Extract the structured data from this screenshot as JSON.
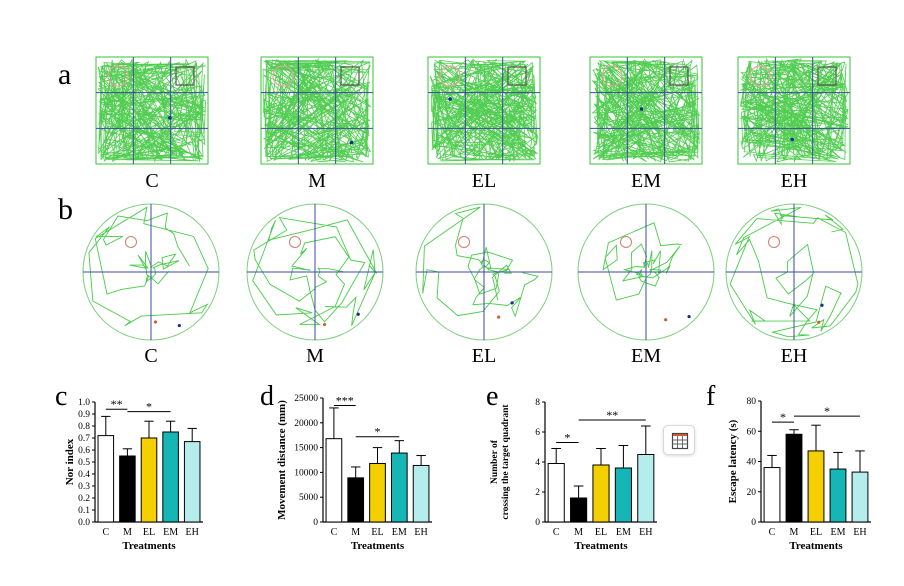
{
  "rows": {
    "a": {
      "label": "a",
      "groups": [
        "C",
        "M",
        "EL",
        "EM",
        "EH"
      ]
    },
    "b": {
      "label": "b",
      "groups": [
        "C",
        "M",
        "EL",
        "EM",
        "EH"
      ]
    }
  },
  "colors": {
    "C": "#ffffff",
    "M": "#000000",
    "EL": "#f5d000",
    "EM": "#17b6b6",
    "EH": "#b5ecec",
    "track": "#33c633",
    "grid": "#3b4aa0",
    "ring": "#e0a59a"
  },
  "floating_button": {
    "icon": "calendar-grid-icon"
  },
  "chart_data": [
    {
      "panel": "c",
      "type": "bar",
      "categories": [
        "C",
        "M",
        "EL",
        "EM",
        "EH"
      ],
      "values": [
        0.72,
        0.55,
        0.7,
        0.75,
        0.67
      ],
      "errors": [
        0.16,
        0.06,
        0.14,
        0.09,
        0.11
      ],
      "xlabel": "Treatments",
      "ylabel": "Nor index",
      "ylim": [
        0,
        1.0
      ],
      "yticks": [
        "0.0",
        "0.1",
        "0.2",
        "0.3",
        "0.4",
        "0.5",
        "0.6",
        "0.7",
        "0.8",
        "0.9",
        "1.0"
      ],
      "significance": [
        {
          "from": 0,
          "to": 1,
          "y": 0.94,
          "label": "**"
        },
        {
          "from": 1,
          "to": 3,
          "y": 0.92,
          "label": "*"
        }
      ]
    },
    {
      "panel": "d",
      "type": "bar",
      "categories": [
        "C",
        "M",
        "EL",
        "EM",
        "EH"
      ],
      "values": [
        16800,
        8900,
        11800,
        13900,
        11400
      ],
      "errors": [
        6200,
        2200,
        3200,
        2500,
        2000
      ],
      "xlabel": "Treatments",
      "ylabel": "Movement distance (mm)",
      "ylim": [
        0,
        25000
      ],
      "yticks": [
        "0",
        "5000",
        "10000",
        "15000",
        "20000",
        "25000"
      ],
      "significance": [
        {
          "from": 0,
          "to": 1,
          "y": 23500,
          "label": "***"
        },
        {
          "from": 1,
          "to": 3,
          "y": 17200,
          "label": "*"
        }
      ]
    },
    {
      "panel": "e",
      "type": "bar",
      "categories": [
        "C",
        "M",
        "EL",
        "EM",
        "EH"
      ],
      "values": [
        3.9,
        1.6,
        3.8,
        3.6,
        4.5
      ],
      "errors": [
        1.0,
        0.8,
        1.1,
        1.5,
        1.9
      ],
      "xlabel": "Treatments",
      "ylabel": "Number of crossing the target  quadrant",
      "ylim": [
        0,
        8
      ],
      "yticks": [
        "0",
        "2",
        "4",
        "6",
        "8"
      ],
      "significance": [
        {
          "from": 0,
          "to": 1,
          "y": 5.3,
          "label": "*"
        },
        {
          "from": 1,
          "to": 4,
          "y": 6.8,
          "label": "**"
        }
      ]
    },
    {
      "panel": "f",
      "type": "bar",
      "categories": [
        "C",
        "M",
        "EL",
        "EM",
        "EH"
      ],
      "values": [
        36,
        58,
        47,
        35,
        33
      ],
      "errors": [
        8,
        3,
        17,
        11,
        14
      ],
      "xlabel": "Treatments",
      "ylabel": "Escape latency (s)",
      "ylim": [
        0,
        80
      ],
      "yticks": [
        "0",
        "20",
        "40",
        "60",
        "80"
      ],
      "significance": [
        {
          "from": 0,
          "to": 1,
          "y": 66,
          "label": "*"
        },
        {
          "from": 1,
          "to": 4,
          "y": 70,
          "label": "*"
        }
      ]
    }
  ]
}
